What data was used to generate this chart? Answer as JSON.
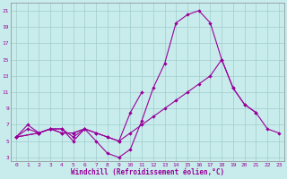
{
  "xlabel": "Windchill (Refroidissement éolien,°C)",
  "bg_color": "#c8ecec",
  "line_color": "#990099",
  "grid_color": "#a0cccc",
  "xlim": [
    -0.5,
    23.5
  ],
  "ylim": [
    2.5,
    22.0
  ],
  "yticks": [
    3,
    5,
    7,
    9,
    11,
    13,
    15,
    17,
    19,
    21
  ],
  "xticks": [
    0,
    1,
    2,
    3,
    4,
    5,
    6,
    7,
    8,
    9,
    10,
    11,
    12,
    13,
    14,
    15,
    16,
    17,
    18,
    19,
    20,
    21,
    22,
    23
  ],
  "line1_x": [
    0,
    1,
    2,
    3,
    4,
    5,
    6,
    7,
    8,
    9,
    10,
    11,
    12,
    13,
    14,
    15,
    16,
    17,
    18,
    19,
    20,
    21
  ],
  "line1_y": [
    5.5,
    7.0,
    6.0,
    6.5,
    6.5,
    5.0,
    6.5,
    5.0,
    3.5,
    3.0,
    4.0,
    7.5,
    11.5,
    14.5,
    19.5,
    20.5,
    21.0,
    19.5,
    15.0,
    11.5,
    9.5,
    8.5
  ],
  "line2_x": [
    0,
    1,
    2,
    3,
    4,
    5,
    6,
    7,
    8,
    9,
    10,
    11,
    12,
    13,
    14,
    15,
    16,
    17,
    18,
    19,
    20,
    21,
    22,
    23
  ],
  "line2_y": [
    5.5,
    6.5,
    6.0,
    6.5,
    6.0,
    6.0,
    6.5,
    6.0,
    5.5,
    5.0,
    6.0,
    7.0,
    8.0,
    9.0,
    10.0,
    11.0,
    12.0,
    13.0,
    15.0,
    11.5,
    9.5,
    8.5,
    6.5,
    6.0
  ],
  "line3_x": [
    0,
    2,
    3,
    4,
    5,
    6,
    7,
    8,
    9,
    10,
    11
  ],
  "line3_y": [
    5.5,
    6.0,
    6.5,
    6.0,
    6.0,
    6.5,
    6.0,
    5.5,
    5.0,
    8.5,
    11.0
  ],
  "line4_x": [
    0,
    2,
    3,
    4,
    5,
    6
  ],
  "line4_y": [
    5.5,
    6.0,
    6.5,
    6.5,
    5.5,
    6.5
  ]
}
